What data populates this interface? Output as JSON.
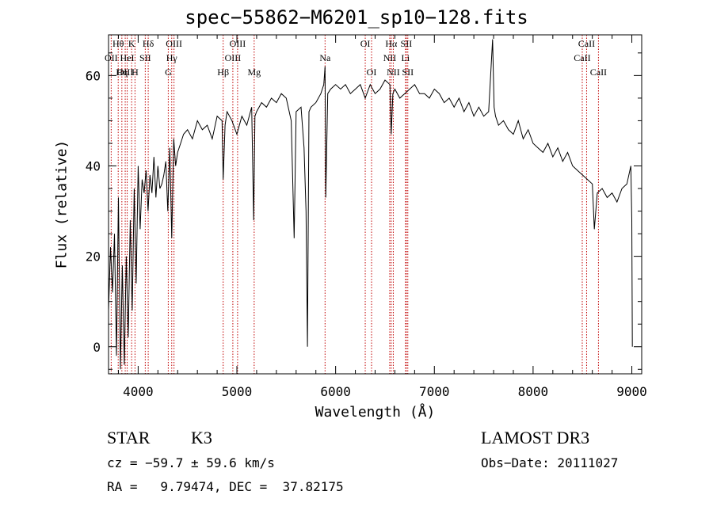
{
  "chart_data": {
    "type": "line",
    "title": "spec−55862−M6201_sp10−128.fits",
    "xlabel": "Wavelength (Å)",
    "ylabel": "Flux (relative)",
    "xlim": [
      3700,
      9100
    ],
    "ylim": [
      -6,
      69
    ],
    "x_ticks": [
      4000,
      5000,
      6000,
      7000,
      8000,
      9000
    ],
    "x_tick_labels": [
      "4000",
      "5000",
      "6000",
      "7000",
      "8000",
      "9000"
    ],
    "y_ticks": [
      0,
      20,
      40,
      60
    ],
    "y_tick_labels": [
      "0",
      "20",
      "40",
      "60"
    ],
    "series": [
      {
        "name": "spectrum",
        "color": "#000000",
        "x": [
          3700,
          3720,
          3740,
          3760,
          3780,
          3800,
          3820,
          3840,
          3860,
          3880,
          3900,
          3920,
          3940,
          3960,
          3980,
          4000,
          4020,
          4040,
          4060,
          4080,
          4100,
          4120,
          4140,
          4160,
          4180,
          4200,
          4220,
          4240,
          4260,
          4280,
          4300,
          4320,
          4340,
          4360,
          4380,
          4400,
          4430,
          4460,
          4500,
          4550,
          4600,
          4650,
          4700,
          4750,
          4800,
          4850,
          4861,
          4880,
          4900,
          4950,
          5000,
          5050,
          5100,
          5150,
          5170,
          5183,
          5200,
          5250,
          5300,
          5350,
          5400,
          5450,
          5500,
          5550,
          5580,
          5600,
          5650,
          5680,
          5700,
          5715,
          5730,
          5750,
          5800,
          5850,
          5880,
          5893,
          5900,
          5920,
          5950,
          6000,
          6050,
          6100,
          6150,
          6200,
          6250,
          6300,
          6350,
          6400,
          6450,
          6500,
          6550,
          6563,
          6580,
          6600,
          6650,
          6700,
          6750,
          6800,
          6850,
          6900,
          6950,
          7000,
          7050,
          7100,
          7150,
          7200,
          7250,
          7300,
          7350,
          7400,
          7450,
          7500,
          7550,
          7590,
          7605,
          7620,
          7650,
          7700,
          7750,
          7800,
          7850,
          7900,
          7950,
          8000,
          8050,
          8100,
          8150,
          8200,
          8250,
          8300,
          8350,
          8400,
          8450,
          8500,
          8550,
          8600,
          8620,
          8650,
          8700,
          8750,
          8800,
          8850,
          8900,
          8950,
          8990,
          9000,
          9005
        ],
        "y": [
          8,
          22,
          12,
          25,
          -2,
          33,
          -5,
          18,
          -4,
          20,
          2,
          28,
          8,
          35,
          14,
          40,
          26,
          37,
          34,
          39,
          30,
          38,
          34,
          42,
          33,
          40,
          35,
          36,
          38,
          41,
          30,
          44,
          24,
          46,
          40,
          43,
          45,
          47,
          48,
          46,
          50,
          48,
          49,
          46,
          51,
          50,
          37,
          49,
          52,
          50,
          47,
          51,
          49,
          53,
          28,
          51,
          52,
          54,
          53,
          55,
          54,
          56,
          55,
          50,
          24,
          52,
          53,
          44,
          30,
          0,
          52,
          53,
          54,
          56,
          58,
          62,
          33,
          56,
          57,
          58,
          57,
          58,
          56,
          57,
          58,
          55,
          58,
          56,
          57,
          59,
          58,
          47,
          56,
          57,
          55,
          56,
          57,
          58,
          56,
          56,
          55,
          57,
          56,
          54,
          55,
          53,
          55,
          52,
          54,
          51,
          53,
          51,
          52,
          68,
          53,
          51,
          49,
          50,
          48,
          47,
          50,
          46,
          48,
          45,
          44,
          43,
          45,
          42,
          44,
          41,
          43,
          40,
          39,
          38,
          37,
          36,
          26,
          34,
          35,
          33,
          34,
          32,
          35,
          36,
          40,
          28,
          0
        ]
      }
    ],
    "line_markers": [
      {
        "label": "Hθ",
        "x": 3798,
        "row": 1
      },
      {
        "label": "OII",
        "x": 3727,
        "row": 2
      },
      {
        "label": "OIII",
        "x": 3869,
        "row": 3
      },
      {
        "label": "K",
        "x": 3934,
        "row": 1
      },
      {
        "label": "HeI",
        "x": 3889,
        "row": 2
      },
      {
        "label": "Hη",
        "x": 3835,
        "row": 3
      },
      {
        "label": "Hδ",
        "x": 4102,
        "row": 1
      },
      {
        "label": "SII",
        "x": 4072,
        "row": 2
      },
      {
        "label": "H",
        "x": 3968,
        "row": 3
      },
      {
        "label": "OIII",
        "x": 4363,
        "row": 1
      },
      {
        "label": "Hγ",
        "x": 4340,
        "row": 2
      },
      {
        "label": "G",
        "x": 4305,
        "row": 3
      },
      {
        "label": "OIII",
        "x": 5007,
        "row": 1
      },
      {
        "label": "OIII",
        "x": 4959,
        "row": 2
      },
      {
        "label": "Hβ",
        "x": 4861,
        "row": 3
      },
      {
        "label": "Mg",
        "x": 5175,
        "row": 3
      },
      {
        "label": "Na",
        "x": 5893,
        "row": 2
      },
      {
        "label": "OI",
        "x": 6300,
        "row": 1
      },
      {
        "label": "OI",
        "x": 6364,
        "row": 3
      },
      {
        "label": "Hα",
        "x": 6563,
        "row": 1
      },
      {
        "label": "NII",
        "x": 6548,
        "row": 2
      },
      {
        "label": "NII",
        "x": 6584,
        "row": 3
      },
      {
        "label": "SII",
        "x": 6716,
        "row": 1
      },
      {
        "label": "Li",
        "x": 6708,
        "row": 2
      },
      {
        "label": "SII",
        "x": 6731,
        "row": 3
      },
      {
        "label": "CaII",
        "x": 8542,
        "row": 1
      },
      {
        "label": "CaII",
        "x": 8498,
        "row": 2
      },
      {
        "label": "CaII",
        "x": 8662,
        "row": 3
      }
    ]
  },
  "info": {
    "class": "STAR",
    "subclass": "K3",
    "survey": "LAMOST DR3",
    "cz": "cz = −59.7 ± 59.6 km/s",
    "obs_date": "Obs−Date: 20111027",
    "radec": "RA =   9.79474, DEC =  37.82175"
  },
  "colors": {
    "axes": "#000000",
    "spectrum": "#000000",
    "marker_lines": "#c00000"
  }
}
